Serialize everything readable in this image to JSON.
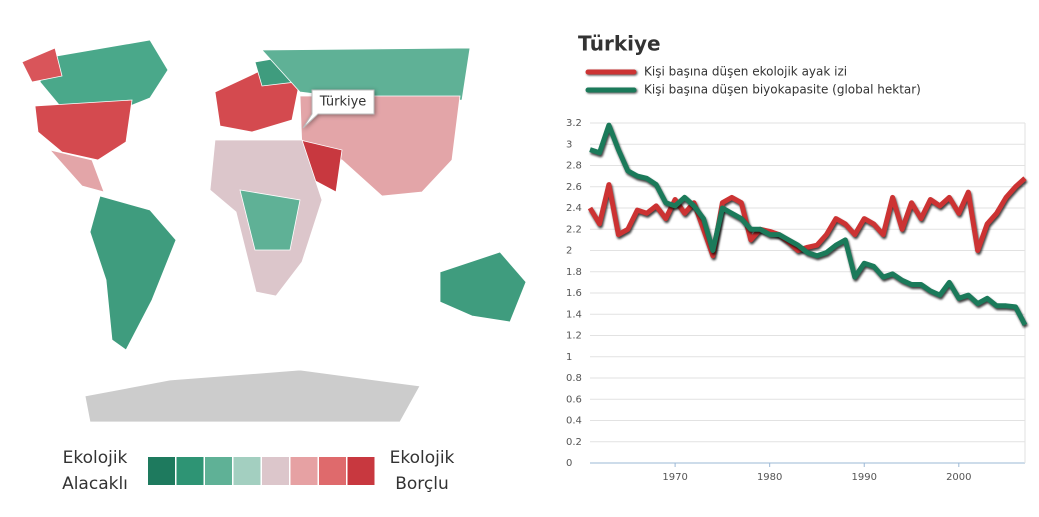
{
  "map": {
    "callout": "Türkiye",
    "legend": {
      "low_label": [
        "Ekolojik",
        "Alacaklı"
      ],
      "high_label": [
        "Ekolojik",
        "Borçlu"
      ],
      "colors": [
        "#1e7a5e",
        "#2e9474",
        "#5fb196",
        "#a3cfc0",
        "#dcc6cb",
        "#e6a1a3",
        "#df6a6c",
        "#c8383f"
      ]
    }
  },
  "chart_data": {
    "type": "line",
    "title": "Türkiye",
    "x": [
      1961,
      1962,
      1963,
      1964,
      1965,
      1966,
      1967,
      1968,
      1969,
      1970,
      1971,
      1972,
      1973,
      1974,
      1975,
      1976,
      1977,
      1978,
      1979,
      1980,
      1981,
      1982,
      1983,
      1984,
      1985,
      1986,
      1987,
      1988,
      1989,
      1990,
      1991,
      1992,
      1993,
      1994,
      1995,
      1996,
      1997,
      1998,
      1999,
      2000,
      2001,
      2002,
      2003,
      2004,
      2005,
      2006,
      2007
    ],
    "series": [
      {
        "name": "Kişi başına düşen ekolojik ayak izi",
        "color": "#cc3333",
        "values": [
          2.4,
          2.25,
          2.62,
          2.15,
          2.2,
          2.38,
          2.35,
          2.42,
          2.3,
          2.48,
          2.35,
          2.45,
          2.2,
          1.95,
          2.45,
          2.5,
          2.45,
          2.1,
          2.2,
          2.18,
          2.15,
          2.08,
          2.0,
          2.03,
          2.05,
          2.15,
          2.3,
          2.25,
          2.15,
          2.3,
          2.25,
          2.15,
          2.5,
          2.2,
          2.45,
          2.3,
          2.48,
          2.42,
          2.5,
          2.35,
          2.55,
          2.0,
          2.25,
          2.35,
          2.5,
          2.6,
          2.68
        ]
      },
      {
        "name": "Kişi başına düşen biyokapasite (global hektar)",
        "color": "#1b7a5a",
        "values": [
          2.95,
          2.92,
          3.18,
          2.95,
          2.75,
          2.7,
          2.68,
          2.62,
          2.45,
          2.42,
          2.5,
          2.42,
          2.3,
          2.0,
          2.4,
          2.35,
          2.3,
          2.2,
          2.2,
          2.15,
          2.15,
          2.1,
          2.05,
          1.98,
          1.95,
          1.98,
          2.05,
          2.1,
          1.75,
          1.88,
          1.85,
          1.75,
          1.78,
          1.72,
          1.68,
          1.68,
          1.62,
          1.58,
          1.7,
          1.55,
          1.58,
          1.5,
          1.55,
          1.48,
          1.48,
          1.47,
          1.3
        ]
      }
    ],
    "xlim": [
      1961,
      2007
    ],
    "xticks": [
      1970,
      1980,
      1990,
      2000
    ],
    "ylim": [
      0,
      3.2
    ],
    "yticks": [
      0,
      0.2,
      0.4,
      0.6,
      0.8,
      1,
      1.2,
      1.4,
      1.6,
      1.8,
      2,
      2.2,
      2.4,
      2.6,
      2.8,
      3,
      3.2
    ],
    "grid": true
  }
}
